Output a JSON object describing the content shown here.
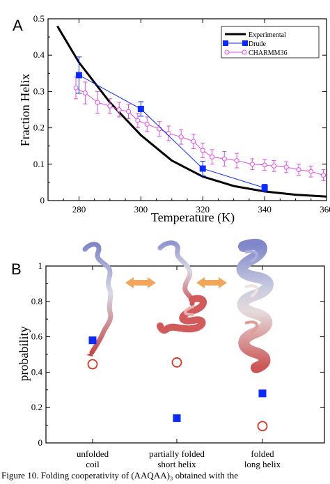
{
  "chart_data": [
    {
      "type": "line",
      "panel_label": "A",
      "title": "",
      "xlabel": "Temperature (K)",
      "ylabel": "Fraction Helix",
      "xlim": [
        270,
        360
      ],
      "ylim": [
        0,
        0.5
      ],
      "xticks": [
        "280",
        "300",
        "320",
        "340",
        "360"
      ],
      "yticks": [
        "0",
        "0.1",
        "0.2",
        "0.3",
        "0.4",
        "0.5"
      ],
      "grid": false,
      "legend": "top-right",
      "series": [
        {
          "name": "Experimental",
          "color": "#000000",
          "x": [
            273,
            280,
            290,
            300,
            310,
            320,
            330,
            340,
            350,
            360
          ],
          "y": [
            0.48,
            0.38,
            0.27,
            0.18,
            0.11,
            0.066,
            0.04,
            0.025,
            0.016,
            0.011
          ]
        },
        {
          "name": "Drude",
          "color": "#0a2aff",
          "marker": "square",
          "x": [
            280,
            300,
            320,
            340
          ],
          "y": [
            0.345,
            0.252,
            0.088,
            0.035
          ],
          "err": [
            0.05,
            0.02,
            0.02,
            0.01
          ]
        },
        {
          "name": "CHARMM36",
          "color": "#e24ce0",
          "marker": "circle",
          "x": [
            279,
            282,
            286,
            290,
            293,
            296,
            299,
            302,
            306,
            309,
            313,
            317,
            320,
            323,
            327,
            331,
            336,
            340,
            343,
            347,
            351,
            355,
            359
          ],
          "y": [
            0.31,
            0.296,
            0.27,
            0.26,
            0.25,
            0.245,
            0.22,
            0.21,
            0.197,
            0.185,
            0.175,
            0.163,
            0.138,
            0.12,
            0.115,
            0.11,
            0.1,
            0.098,
            0.095,
            0.092,
            0.085,
            0.08,
            0.07
          ],
          "err": [
            0.03,
            0.03,
            0.03,
            0.02,
            0.02,
            0.02,
            0.02,
            0.02,
            0.02,
            0.02,
            0.02,
            0.02,
            0.02,
            0.02,
            0.02,
            0.02,
            0.015,
            0.015,
            0.015,
            0.015,
            0.015,
            0.015,
            0.015
          ]
        }
      ]
    },
    {
      "type": "scatter",
      "panel_label": "B",
      "title": "",
      "xlabel": "",
      "ylabel": "probability",
      "ylim": [
        0,
        1
      ],
      "yticks": [
        "0",
        "0.2",
        "0.4",
        "0.6",
        "0.8",
        "1"
      ],
      "categories": [
        [
          "unfolded",
          "coil"
        ],
        [
          "partially folded",
          "short helix"
        ],
        [
          "folded",
          "long helix"
        ]
      ],
      "grid": false,
      "series": [
        {
          "marker": "filled-square",
          "color": "#0a2aff",
          "values": [
            0.58,
            0.14,
            0.28
          ]
        },
        {
          "marker": "open-circle",
          "color": "#e0301e",
          "values": [
            0.445,
            0.455,
            0.095
          ]
        }
      ],
      "arrow_color": "#f2a65a"
    }
  ],
  "caption": {
    "lead": "Figure 10.",
    "text": " Folding cooperativity of (AAQAA)₃ obtained with the"
  }
}
